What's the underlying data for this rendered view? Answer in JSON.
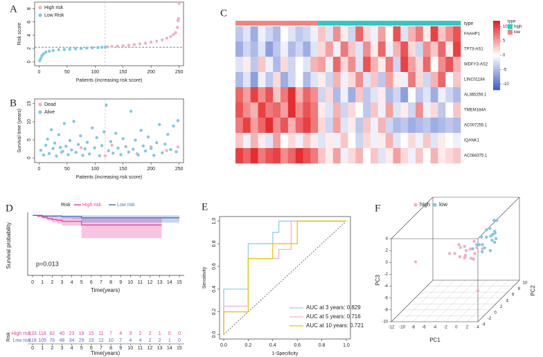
{
  "chart_data": [
    {
      "type": "scatter",
      "panel": "A",
      "xlabel": "Patients (increasing risk score)",
      "ylabel": "Risk score",
      "xlim": [
        -8,
        258
      ],
      "ylim": [
        -0.6,
        9
      ],
      "xticks": [
        0,
        50,
        100,
        150,
        200,
        250
      ],
      "yticks": [
        0,
        2,
        4,
        6,
        8
      ],
      "cutoff": 2.2,
      "split_index": 118,
      "series": [
        {
          "name": "High risk",
          "color": "#F4AFC0",
          "x": [
            122,
            130,
            140,
            150,
            160,
            170,
            180,
            190,
            200,
            210,
            220,
            228,
            235,
            240,
            244,
            247,
            248,
            249,
            250
          ],
          "values": [
            2.25,
            2.3,
            2.35,
            2.42,
            2.5,
            2.6,
            2.7,
            2.8,
            2.95,
            3.1,
            3.3,
            3.55,
            3.8,
            4.1,
            4.4,
            5.2,
            6.2,
            6.5,
            8.8
          ]
        },
        {
          "name": "Low Risk",
          "color": "#7EC8E0",
          "x": [
            1,
            3,
            5,
            8,
            12,
            18,
            25,
            35,
            45,
            55,
            65,
            75,
            85,
            95,
            105,
            112,
            118
          ],
          "values": [
            0.15,
            0.5,
            0.9,
            1.2,
            1.45,
            1.6,
            1.7,
            1.8,
            1.85,
            1.9,
            1.95,
            2.0,
            2.05,
            2.1,
            2.15,
            2.18,
            2.2
          ]
        }
      ]
    },
    {
      "type": "scatter",
      "panel": "B",
      "xlabel": "Patients (increasing risk score)",
      "ylabel": "Survival time (years)",
      "xlim": [
        -8,
        258
      ],
      "ylim": [
        -1.3,
        16.3
      ],
      "xticks": [
        0,
        50,
        100,
        150,
        200,
        250
      ],
      "yticks": [
        0,
        5,
        10,
        15
      ],
      "split_index": 118,
      "series": [
        {
          "name": "Dead",
          "color": "#F4AFC0",
          "x": [
            40,
            75,
            118,
            130,
            175,
            200,
            228,
            248
          ],
          "values": [
            1.5,
            2.8,
            0.6,
            3.5,
            1.2,
            3.1,
            2.0,
            3.0
          ]
        },
        {
          "name": "Alive",
          "color": "#7EC8E0",
          "x": [
            3,
            8,
            12,
            15,
            18,
            22,
            25,
            28,
            31,
            35,
            38,
            42,
            45,
            48,
            52,
            55,
            58,
            62,
            66,
            70,
            74,
            78,
            82,
            86,
            90,
            95,
            99,
            103,
            108,
            112,
            116,
            120,
            124,
            128,
            132,
            137,
            141,
            146,
            150,
            155,
            160,
            164,
            168,
            172,
            177,
            182,
            186,
            190,
            195,
            200,
            205,
            210,
            215,
            220,
            225,
            230,
            235,
            240,
            245,
            248
          ],
          "values": [
            2.1,
            0.8,
            3.5,
            5.2,
            1.2,
            7.8,
            2.6,
            4.1,
            0.5,
            6.4,
            2.9,
            1.8,
            9.5,
            3.2,
            0.9,
            4.8,
            2.2,
            10.1,
            1.5,
            3.7,
            6.1,
            0.7,
            2.5,
            4.3,
            1.1,
            8.3,
            2.8,
            5.6,
            0.6,
            3.4,
            7.2,
            14.6,
            2.0,
            4.5,
            1.3,
            6.8,
            2.7,
            0.9,
            5.3,
            3.1,
            1.6,
            12.9,
            2.4,
            4.9,
            0.8,
            7.6,
            3.3,
            1.9,
            5.8,
            2.6,
            0.7,
            4.2,
            9.2,
            1.4,
            3.8,
            6.5,
            2.3,
            8.8,
            1.7,
            10.3
          ]
        }
      ]
    },
    {
      "type": "heatmap",
      "panel": "C",
      "band_label": "type",
      "type_legend_title": "type",
      "groups": [
        {
          "name": "high",
          "color": "#2EC8C8"
        },
        {
          "name": "low",
          "color": "#F4837D"
        }
      ],
      "column_types": [
        "low",
        "low",
        "low",
        "low",
        "low",
        "low",
        "low",
        "low",
        "low",
        "low",
        "low",
        "high",
        "high",
        "high",
        "high",
        "high",
        "high",
        "high",
        "high",
        "high",
        "high",
        "high",
        "high",
        "high",
        "high",
        "high",
        "high",
        "high",
        "high",
        "high"
      ],
      "rows": [
        "FAAHP1",
        "TP73-AS1",
        "WDFY3-AS2",
        "LINC01184",
        "AL365259.1",
        "TMEM184A",
        "AC007255.1",
        "IQANK1",
        "AC084375.1"
      ],
      "colors": [
        "#3C5BC8",
        "#FFFFFF",
        "#E41A1C"
      ],
      "clim": [
        -12,
        12
      ],
      "colorbar_ticks": [
        10,
        5,
        0,
        -5,
        -10
      ],
      "matrix": [
        [
          -4,
          -2,
          -6,
          -1,
          -3,
          -5,
          0,
          -2,
          -4,
          -3,
          -1,
          3,
          -2,
          6,
          1,
          -3,
          8,
          2,
          -1,
          5,
          0,
          9,
          -2,
          4,
          7,
          1,
          10,
          3,
          6,
          9
        ],
        [
          -6,
          -3,
          -5,
          -2,
          -7,
          -4,
          -1,
          -5,
          -3,
          -6,
          -2,
          2,
          5,
          -1,
          7,
          3,
          -2,
          6,
          1,
          8,
          -1,
          4,
          9,
          2,
          -3,
          6,
          3,
          8,
          1,
          10
        ],
        [
          -2,
          1,
          -4,
          3,
          -1,
          -5,
          2,
          -3,
          0,
          -2,
          4,
          5,
          -1,
          8,
          2,
          6,
          -2,
          9,
          4,
          1,
          7,
          -3,
          10,
          5,
          2,
          8,
          0,
          6,
          9,
          4
        ],
        [
          -5,
          -2,
          -7,
          -1,
          -4,
          2,
          -6,
          -3,
          0,
          -5,
          -2,
          1,
          -3,
          4,
          -1,
          2,
          6,
          -2,
          3,
          -4,
          5,
          1,
          -1,
          7,
          2,
          -3,
          4,
          8,
          0,
          3
        ],
        [
          8,
          5,
          10,
          6,
          9,
          3,
          7,
          11,
          4,
          8,
          6,
          -3,
          2,
          -5,
          -1,
          -6,
          3,
          -4,
          -2,
          1,
          -5,
          -3,
          -7,
          0,
          -4,
          -2,
          -6,
          -1,
          -3,
          -5
        ],
        [
          9,
          6,
          4,
          10,
          7,
          8,
          5,
          11,
          6,
          9,
          7,
          1,
          -2,
          4,
          -3,
          2,
          0,
          -4,
          3,
          -1,
          5,
          -2,
          1,
          -3,
          6,
          -1,
          2,
          -4,
          0,
          3
        ],
        [
          7,
          10,
          5,
          8,
          11,
          6,
          9,
          4,
          8,
          10,
          7,
          2,
          -3,
          5,
          -2,
          1,
          -4,
          3,
          -1,
          4,
          -3,
          -5,
          -4,
          -6,
          -5,
          -4,
          -6,
          -5,
          -4,
          -5
        ],
        [
          3,
          -1,
          4,
          1,
          -2,
          5,
          0,
          2,
          -1,
          3,
          1,
          -2,
          1,
          -1,
          3,
          0,
          -3,
          2,
          -1,
          1,
          4,
          -2,
          0,
          2,
          -1,
          3,
          -2,
          1,
          0,
          -1
        ],
        [
          10,
          8,
          11,
          7,
          9,
          10,
          6,
          8,
          11,
          9,
          7,
          3,
          1,
          5,
          -1,
          2,
          4,
          0,
          3,
          -2,
          1,
          5,
          2,
          -1,
          3,
          0,
          4,
          1,
          2,
          3
        ]
      ]
    },
    {
      "type": "survival",
      "panel": "D",
      "legend_title": "Risk",
      "xlabel": "Time(years)",
      "ylabel": "Survival probability",
      "annotation": "p=0.013",
      "table_title": "Risk",
      "table_xlabel": "Time(years)",
      "xlim": [
        -0.5,
        15.5
      ],
      "ylim": [
        0,
        1.05
      ],
      "xticks": [
        0,
        1,
        2,
        3,
        4,
        5,
        6,
        7,
        8,
        9,
        10,
        11,
        12,
        13,
        14,
        15
      ],
      "series": [
        {
          "name": "High risk",
          "color": "#E8409A",
          "x": [
            0,
            0.5,
            1,
            1.5,
            2,
            2.5,
            3,
            5,
            13.2
          ],
          "values": [
            1,
            0.99,
            0.97,
            0.95,
            0.93,
            0.92,
            0.9,
            0.84,
            0.84
          ],
          "lower": [
            1,
            0.97,
            0.94,
            0.91,
            0.88,
            0.86,
            0.83,
            0.62,
            0.62
          ],
          "upper": [
            1,
            1,
            1,
            0.99,
            0.98,
            0.97,
            0.96,
            0.95,
            0.95
          ],
          "at_risk": [
            133,
            118,
            82,
            40,
            23,
            19,
            15,
            11,
            7,
            4,
            3,
            2,
            2,
            1,
            0,
            0
          ]
        },
        {
          "name": "Low risk",
          "color": "#4A72C8",
          "x": [
            0,
            1,
            2,
            3,
            4,
            5,
            15
          ],
          "values": [
            1,
            0.99,
            0.99,
            0.98,
            0.98,
            0.96,
            0.96
          ],
          "lower": [
            1,
            0.98,
            0.97,
            0.95,
            0.94,
            0.88,
            0.88
          ],
          "upper": [
            1,
            1,
            1,
            1,
            1,
            1,
            1
          ],
          "at_risk": [
            118,
            105,
            76,
            48,
            34,
            29,
            19,
            12,
            10,
            7,
            4,
            4,
            2,
            2,
            1,
            0
          ]
        }
      ]
    },
    {
      "type": "line",
      "panel": "E",
      "xlabel": "1-Specificity",
      "ylabel": "Sensitivity",
      "xlim": [
        -0.034,
        1.034
      ],
      "ylim": [
        -0.04,
        1.04
      ],
      "xticks": [
        {
          "value": 0,
          "label": "0.0"
        },
        0.2,
        0.4,
        0.6,
        0.8,
        {
          "value": 1,
          "label": "1.0"
        }
      ],
      "yticks": [
        {
          "value": 0,
          "label": "0.0"
        },
        0.2,
        0.4,
        0.6,
        0.8,
        {
          "value": 1,
          "label": "1.0"
        }
      ],
      "series": [
        {
          "name": "AUC at 3 years: 0.829",
          "color": "#8ED0E8",
          "x": [
            0,
            0,
            0.2,
            0.2,
            0.4,
            0.4,
            0.45,
            0.45,
            1
          ],
          "values": [
            0,
            0.4,
            0.4,
            0.8,
            0.8,
            0.9,
            0.9,
            1,
            1
          ]
        },
        {
          "name": "AUC at 5 years: 0.716",
          "color": "#F4AFC0",
          "x": [
            0,
            0,
            0.2,
            0.2,
            0.45,
            0.45,
            0.55,
            0.55,
            1
          ],
          "values": [
            0,
            0.25,
            0.25,
            0.67,
            0.67,
            0.75,
            0.75,
            1,
            1
          ]
        },
        {
          "name": "AUC at 10 years: 0.721",
          "color": "#F2C200",
          "x": [
            0,
            0,
            0.2,
            0.2,
            0.4,
            0.4,
            0.6,
            0.6,
            1
          ],
          "values": [
            0,
            0.2,
            0.2,
            0.67,
            0.67,
            0.8,
            0.8,
            1,
            1
          ]
        }
      ]
    },
    {
      "type": "scatter3d",
      "panel": "F",
      "xlabel": "PC1",
      "ylabel": "PC2",
      "zlabel": "PC3",
      "xlim": [
        -12,
        4
      ],
      "ylim": [
        -4,
        10
      ],
      "zlim": [
        -10,
        4
      ],
      "xticks": [
        -12,
        -10,
        -8,
        -6,
        -4,
        -2,
        0,
        2,
        4
      ],
      "yticks": [
        -4,
        -2,
        0,
        2,
        4,
        6,
        8,
        10
      ],
      "zticks": [
        -10,
        -8,
        -6,
        -4,
        -2,
        0,
        2,
        4
      ],
      "series": [
        {
          "name": "high",
          "color": "#F4AFC0",
          "x": [
            -3,
            -2.5,
            -2,
            -1.5,
            -1,
            -0.5,
            0,
            0.5,
            1,
            -2.8,
            -1.8,
            -0.8,
            0.2,
            -2.2,
            -1.2,
            -0.3,
            0.8,
            -10.8,
            0.7,
            -4
          ],
          "y": [
            1,
            2,
            3,
            1.5,
            2.5,
            0,
            1,
            2,
            3,
            2,
            0.5,
            3.5,
            1.5,
            2.8,
            1.2,
            2.2,
            0.8,
            2,
            2,
            1
          ],
          "z": [
            -1,
            -0.5,
            -1.5,
            -2,
            -1,
            -0.8,
            -1.8,
            -0.5,
            -1.2,
            0,
            -1.3,
            -0.2,
            -2.2,
            -0.7,
            -1.6,
            -2.5,
            -0.9,
            -2.9,
            -7.8,
            -1
          ]
        },
        {
          "name": "low",
          "color": "#7EC8E0",
          "x": [
            0.5,
            1,
            1.5,
            2,
            2.5,
            3,
            1.2,
            2.2,
            0.8,
            1.8,
            2.8,
            3.5,
            1.5,
            2.5,
            0.3,
            1,
            2,
            3,
            1.5,
            2.7
          ],
          "y": [
            2,
            3,
            1,
            2.5,
            3.5,
            2,
            4,
            1.5,
            3,
            5,
            2.5,
            3,
            2,
            4.5,
            1,
            5.5,
            6,
            3.5,
            6,
            4
          ],
          "z": [
            0,
            -0.5,
            0.5,
            1,
            0,
            -1,
            1.5,
            -0.3,
            0.8,
            0.2,
            1.2,
            0.5,
            -1.2,
            0.7,
            -0.2,
            1,
            2.1,
            1.5,
            2.1,
            -0.6
          ]
        }
      ]
    }
  ]
}
